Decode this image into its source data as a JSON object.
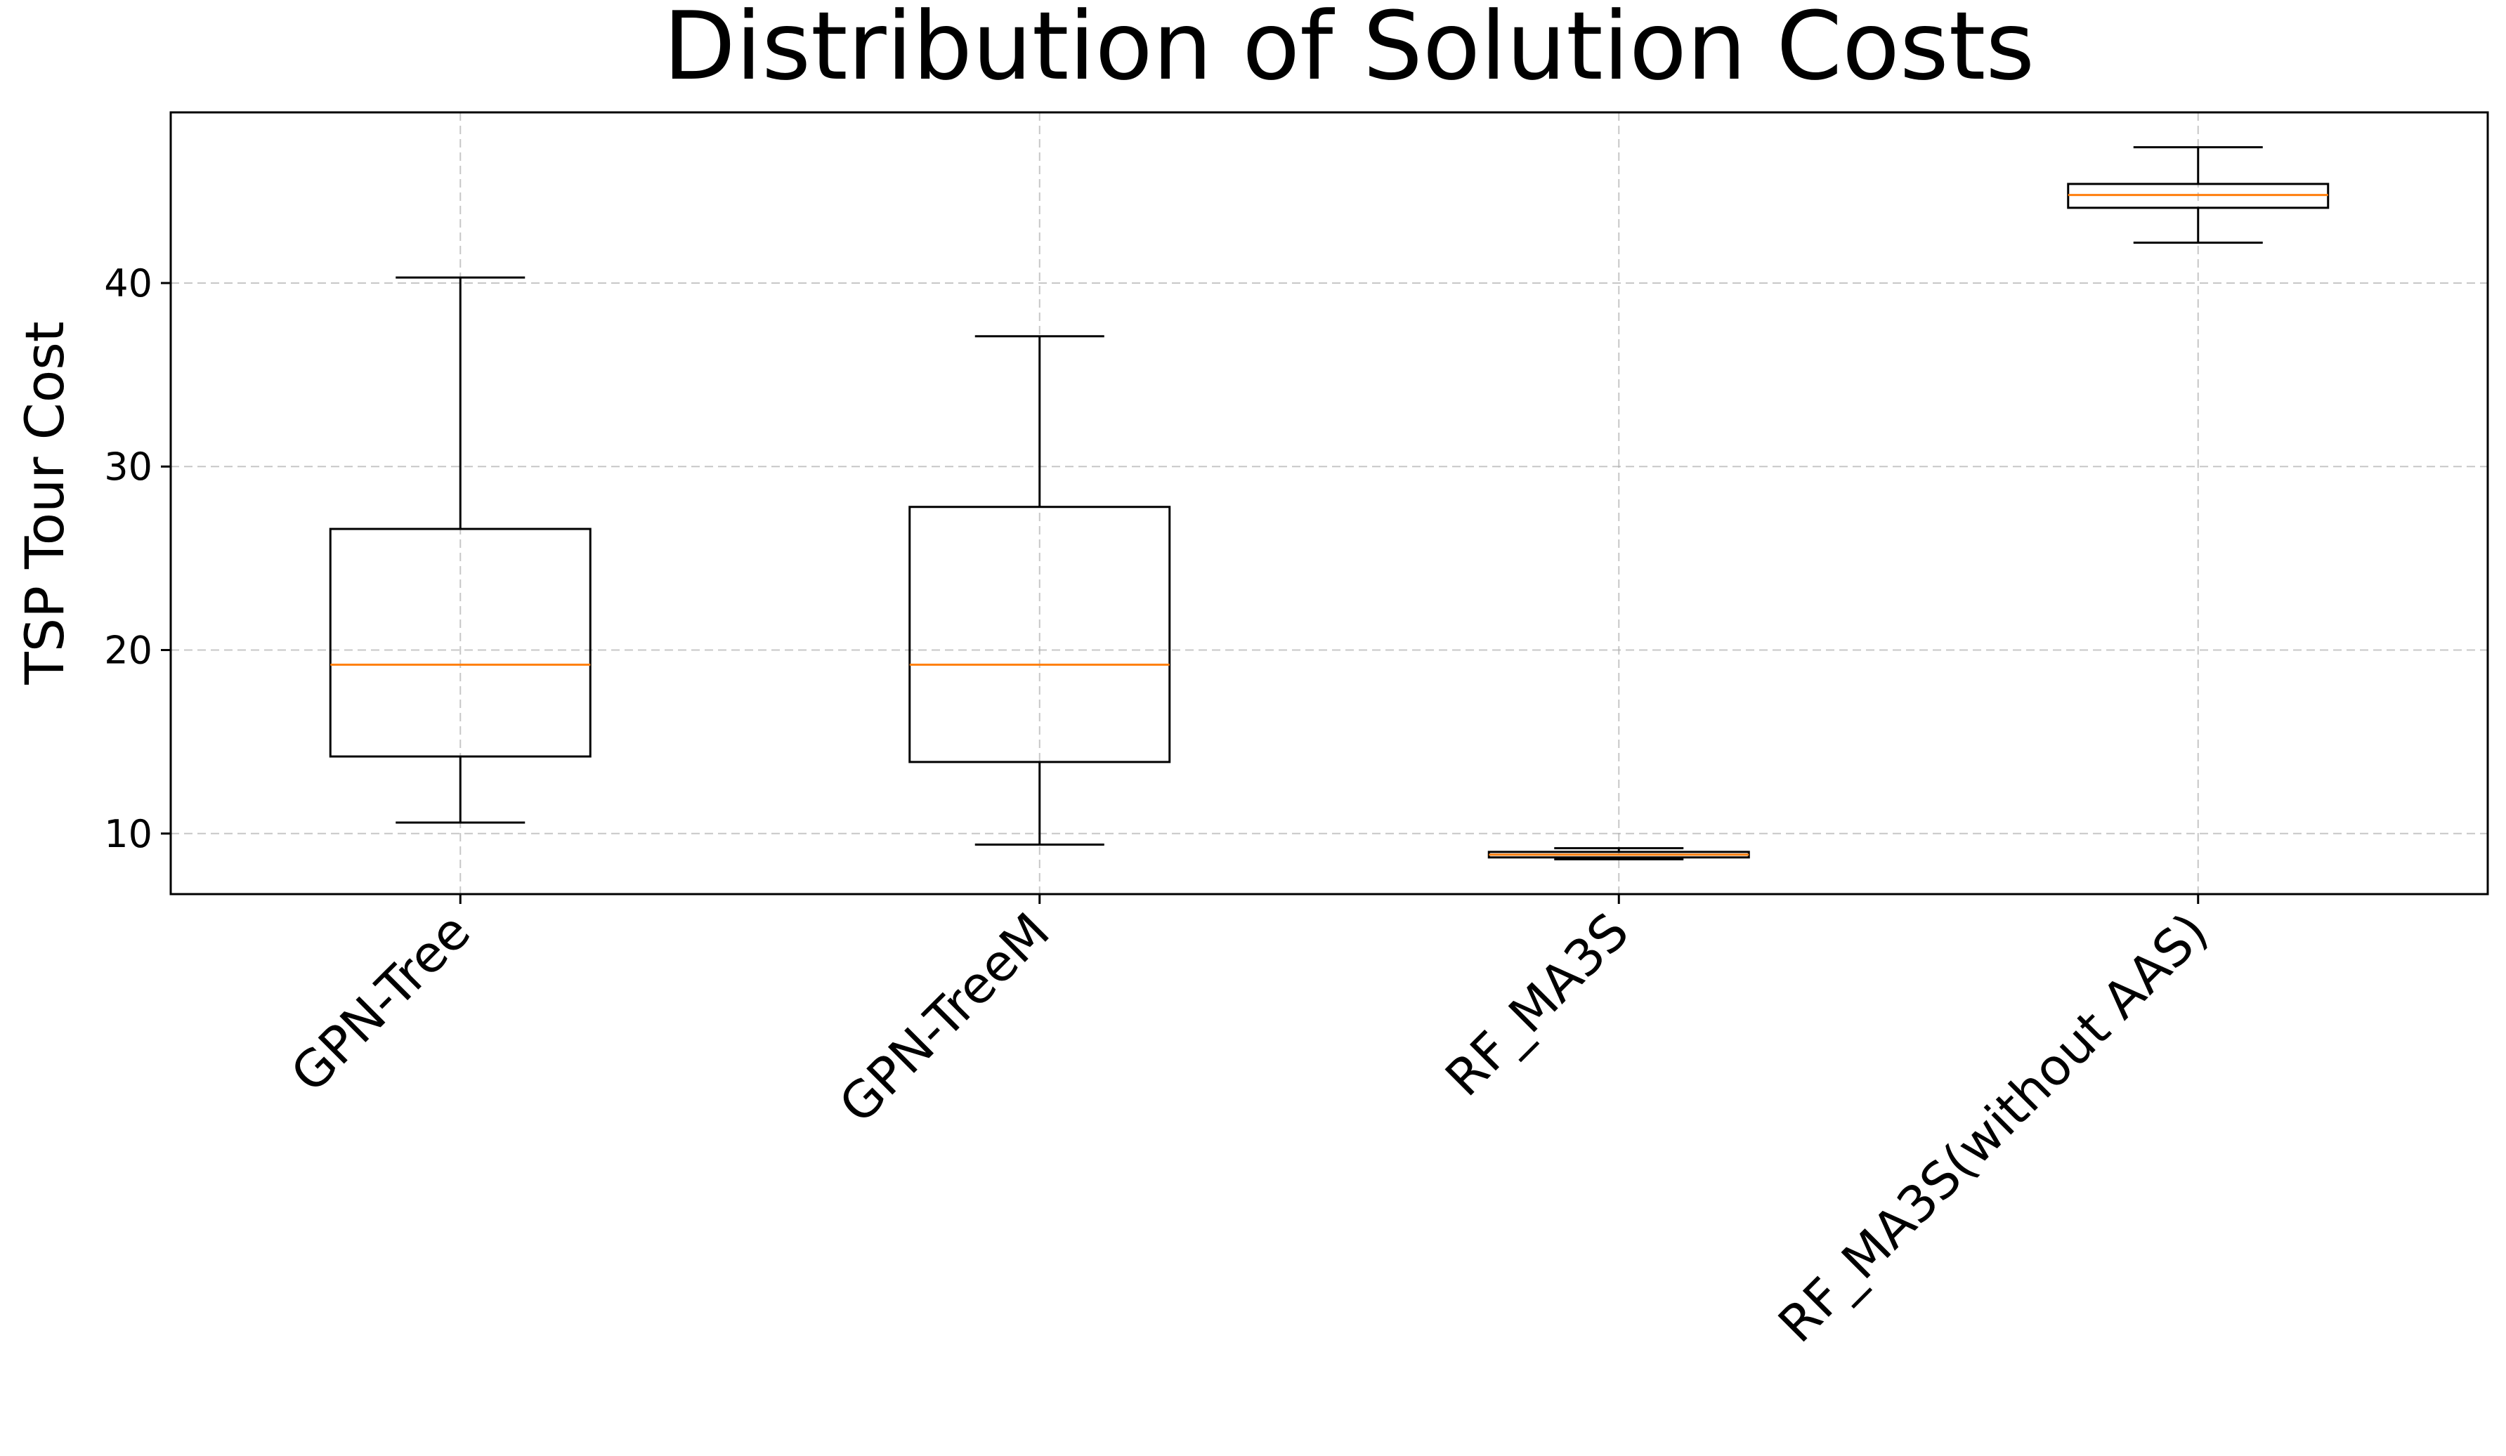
{
  "chart_data": {
    "type": "box",
    "title": "Distribution of Solution Costs",
    "xlabel": "",
    "ylabel": "TSP Tour Cost",
    "ylim": [
      6.7,
      49.3
    ],
    "yticks": [
      10,
      20,
      30,
      40
    ],
    "grid": true,
    "categories": [
      "GPN-Tree",
      "GPN-TreeM",
      "RF_MA3S",
      "RF_MA3S(without AAS)"
    ],
    "boxes": [
      {
        "name": "GPN-Tree",
        "whisker_low": 10.6,
        "q1": 14.2,
        "median": 19.2,
        "q3": 26.6,
        "whisker_high": 40.3
      },
      {
        "name": "GPN-TreeM",
        "whisker_low": 9.4,
        "q1": 13.9,
        "median": 19.2,
        "q3": 27.8,
        "whisker_high": 37.1
      },
      {
        "name": "RF_MA3S",
        "whisker_low": 8.6,
        "q1": 8.7,
        "median": 8.85,
        "q3": 9.0,
        "whisker_high": 9.2
      },
      {
        "name": "RF_MA3S(without AAS)",
        "whisker_low": 42.2,
        "q1": 44.1,
        "median": 44.8,
        "q3": 45.4,
        "whisker_high": 47.4
      }
    ],
    "colors": {
      "box": "#000000",
      "median": "#ff7f0e",
      "grid": "#b0b0b0",
      "background": "#ffffff"
    }
  }
}
